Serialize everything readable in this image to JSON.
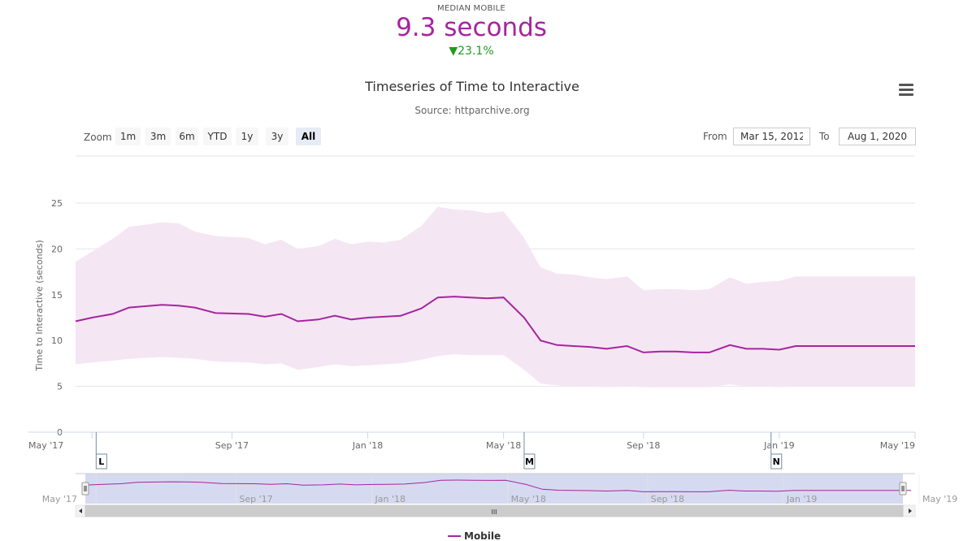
{
  "summary": {
    "label": "MEDIAN MOBILE",
    "value": "9.3 seconds",
    "change": "▼23.1%"
  },
  "toolbar": {
    "zoom_label": "Zoom",
    "zoom_buttons": [
      "1m",
      "3m",
      "6m",
      "YTD",
      "1y",
      "3y",
      "All"
    ],
    "active_zoom": "All",
    "from_label": "From",
    "from_value": "Mar 15, 2012",
    "to_label": "To",
    "to_value": "Aug 1, 2020"
  },
  "colors": {
    "series": "#a5259f",
    "band": "#f5e6f4",
    "navigator_mask": "#d2d6ee",
    "annotation_border": "#6f8ea6"
  },
  "chart_data": {
    "type": "line",
    "title": "Timeseries of Time to Interactive",
    "subtitle": "Source: httparchive.org",
    "xlabel": "",
    "ylabel": "Time to Interactive (seconds)",
    "ylim": [
      0,
      25
    ],
    "yticks": [
      0,
      5,
      10,
      15,
      20,
      25
    ],
    "xlim": [
      2017.29,
      2019.33
    ],
    "xticks": [
      {
        "label": "May '17",
        "x": 2017.33
      },
      {
        "label": "Sep '17",
        "x": 2017.67
      },
      {
        "label": "Jan '18",
        "x": 2018.0
      },
      {
        "label": "May '18",
        "x": 2018.33
      },
      {
        "label": "Sep '18",
        "x": 2018.67
      },
      {
        "label": "Jan '19",
        "x": 2019.0
      },
      {
        "label": "May '19",
        "x": 2019.33
      }
    ],
    "grid": true,
    "legend": "bottom-center",
    "series": [
      {
        "name": "Mobile",
        "x": [
          2017.29,
          2017.33,
          2017.38,
          2017.42,
          2017.5,
          2017.54,
          2017.58,
          2017.63,
          2017.71,
          2017.75,
          2017.79,
          2017.83,
          2017.88,
          2017.92,
          2017.96,
          2018.0,
          2018.04,
          2018.08,
          2018.13,
          2018.17,
          2018.21,
          2018.25,
          2018.29,
          2018.33,
          2018.38,
          2018.42,
          2018.46,
          2018.5,
          2018.54,
          2018.58,
          2018.63,
          2018.67,
          2018.71,
          2018.75,
          2018.79,
          2018.83,
          2018.88,
          2018.92,
          2018.96,
          2019.0,
          2019.04,
          2019.08,
          2019.13,
          2019.17,
          2019.21,
          2019.25,
          2019.29,
          2019.33
        ],
        "values": [
          12.1,
          12.5,
          12.9,
          13.6,
          13.9,
          13.8,
          13.6,
          13.0,
          12.9,
          12.6,
          12.9,
          12.1,
          12.3,
          12.7,
          12.3,
          12.5,
          12.6,
          12.7,
          13.5,
          14.7,
          14.8,
          14.7,
          14.6,
          14.7,
          12.5,
          10.0,
          9.5,
          9.4,
          9.3,
          9.1,
          9.4,
          8.7,
          8.8,
          8.8,
          8.7,
          8.7,
          9.5,
          9.1,
          9.1,
          9.0,
          9.4,
          9.4,
          9.4,
          9.4,
          9.4,
          9.4,
          9.4,
          9.4
        ],
        "p90": [
          18.6,
          19.7,
          21.1,
          22.4,
          22.9,
          22.8,
          21.9,
          21.4,
          21.2,
          20.5,
          21.0,
          20.0,
          20.3,
          21.1,
          20.5,
          20.8,
          20.7,
          21.0,
          22.5,
          24.6,
          24.3,
          24.2,
          23.9,
          24.1,
          21.2,
          18.0,
          17.3,
          17.2,
          16.9,
          16.7,
          17.0,
          15.5,
          15.6,
          15.6,
          15.5,
          15.6,
          16.9,
          16.2,
          16.4,
          16.5,
          17.0,
          17.0,
          17.0,
          17.0,
          17.0,
          17.0,
          17.0,
          17.0
        ],
        "p10": [
          7.4,
          7.6,
          7.8,
          8.0,
          8.2,
          8.1,
          8.0,
          7.7,
          7.6,
          7.4,
          7.5,
          6.8,
          7.1,
          7.4,
          7.2,
          7.3,
          7.4,
          7.5,
          7.9,
          8.3,
          8.5,
          8.4,
          8.4,
          8.4,
          6.8,
          5.3,
          5.1,
          5.0,
          5.0,
          4.9,
          5.0,
          4.9,
          4.9,
          4.9,
          4.9,
          4.9,
          5.2,
          5.0,
          5.0,
          4.9,
          5.0,
          5.0,
          5.0,
          5.0,
          5.0,
          5.0,
          5.0,
          5.0
        ]
      }
    ],
    "annotations": [
      {
        "label": "L",
        "x": 2017.34
      },
      {
        "label": "M",
        "x": 2018.38
      },
      {
        "label": "N",
        "x": 2018.98
      }
    ],
    "navigator": {
      "xticks": [
        {
          "label": "May '17",
          "x": 2017.33
        },
        {
          "label": "Sep '17",
          "x": 2017.67
        },
        {
          "label": "Jan '18",
          "x": 2018.0
        },
        {
          "label": "May '18",
          "x": 2018.33
        },
        {
          "label": "Sep '18",
          "x": 2018.67
        },
        {
          "label": "Jan '19",
          "x": 2019.0
        },
        {
          "label": "May '19",
          "x": 2019.33
        }
      ],
      "scroll_grip": "III"
    }
  }
}
